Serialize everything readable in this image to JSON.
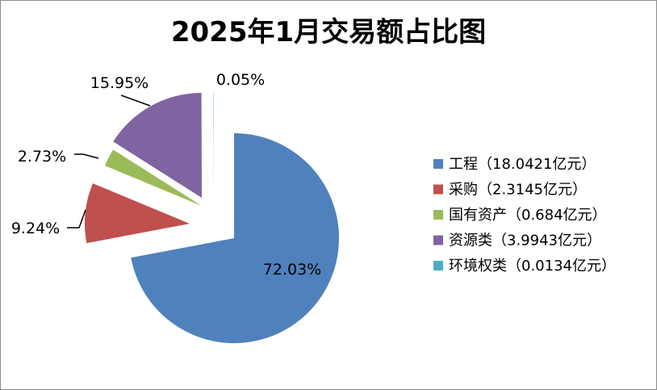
{
  "chart_data": {
    "type": "pie",
    "title": "2025年1月交易额占比图",
    "slices": [
      {
        "legend": "工程（18.0421亿元）",
        "value": 18.0421,
        "percent_label": "72.03%",
        "color": "#4f81bd"
      },
      {
        "legend": "采购（2.3145亿元）",
        "value": 2.3145,
        "percent_label": "9.24%",
        "color": "#c0504d"
      },
      {
        "legend": "国有资产（0.684亿元）",
        "value": 0.684,
        "percent_label": "2.73%",
        "color": "#9bbb59"
      },
      {
        "legend": "资源类（3.9943亿元）",
        "value": 3.9943,
        "percent_label": "15.95%",
        "color": "#8064a2"
      },
      {
        "legend": "环境权类（0.0134亿元）",
        "value": 0.0134,
        "percent_label": "0.05%",
        "color": "#4bacc6"
      }
    ],
    "legend_position": "right",
    "exploded": true
  }
}
